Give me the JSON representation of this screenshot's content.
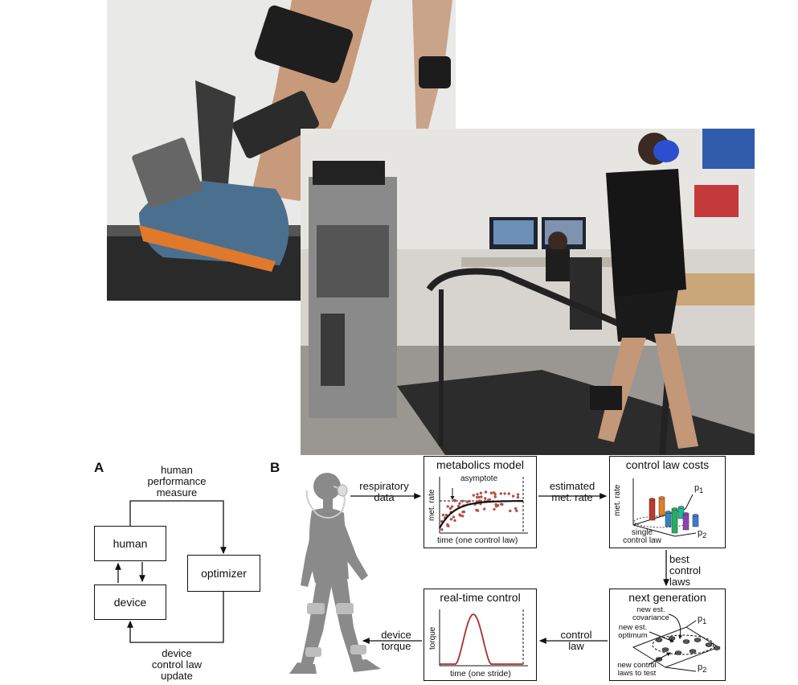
{
  "panel_a": {
    "letter": "A",
    "top_label": [
      "human",
      "performance",
      "measure"
    ],
    "bottom_label": [
      "device",
      "control law",
      "update"
    ],
    "boxes": {
      "human": "human",
      "device": "device",
      "optimizer": "optimizer"
    }
  },
  "panel_b": {
    "letter": "B",
    "edge_labels": {
      "respiratory": [
        "respiratory",
        "data"
      ],
      "estimated": [
        "estimated",
        "met. rate"
      ],
      "best": [
        "best",
        "control",
        "laws"
      ],
      "control_law": [
        "control",
        "law"
      ],
      "device_torque": [
        "device",
        "torque"
      ]
    },
    "metabolics": {
      "title": "metabolics model",
      "asymptote": "asymptote",
      "ylabel": "met. rate",
      "xlabel": "time (one control law)"
    },
    "costs": {
      "title": "control law costs",
      "ylabel": "met. rate",
      "p1": "p",
      "p1_sub": "1",
      "p2": "p",
      "p2_sub": "2",
      "single": [
        "single",
        "control law"
      ]
    },
    "next_gen": {
      "title": "next generation",
      "covariance": [
        "new est.",
        "covariance"
      ],
      "optimum": [
        "new est.",
        "optimum"
      ],
      "to_test": [
        "new control",
        "laws to test"
      ],
      "p1": "p",
      "p1_sub": "1",
      "p2": "p",
      "p2_sub": "2"
    },
    "realtime": {
      "title": "real-time control",
      "ylabel": "torque",
      "xlabel": "time (one stride)"
    }
  },
  "colors": {
    "curve": "#111111",
    "scatter": "#b5504d",
    "torque": "#a8302c",
    "silhouette": "#8a8a8a",
    "bars": [
      "#c0392b",
      "#e67e22",
      "#2e86c1",
      "#27ae60",
      "#1abc9c",
      "#8e44ad",
      "#3a7bd5"
    ]
  }
}
